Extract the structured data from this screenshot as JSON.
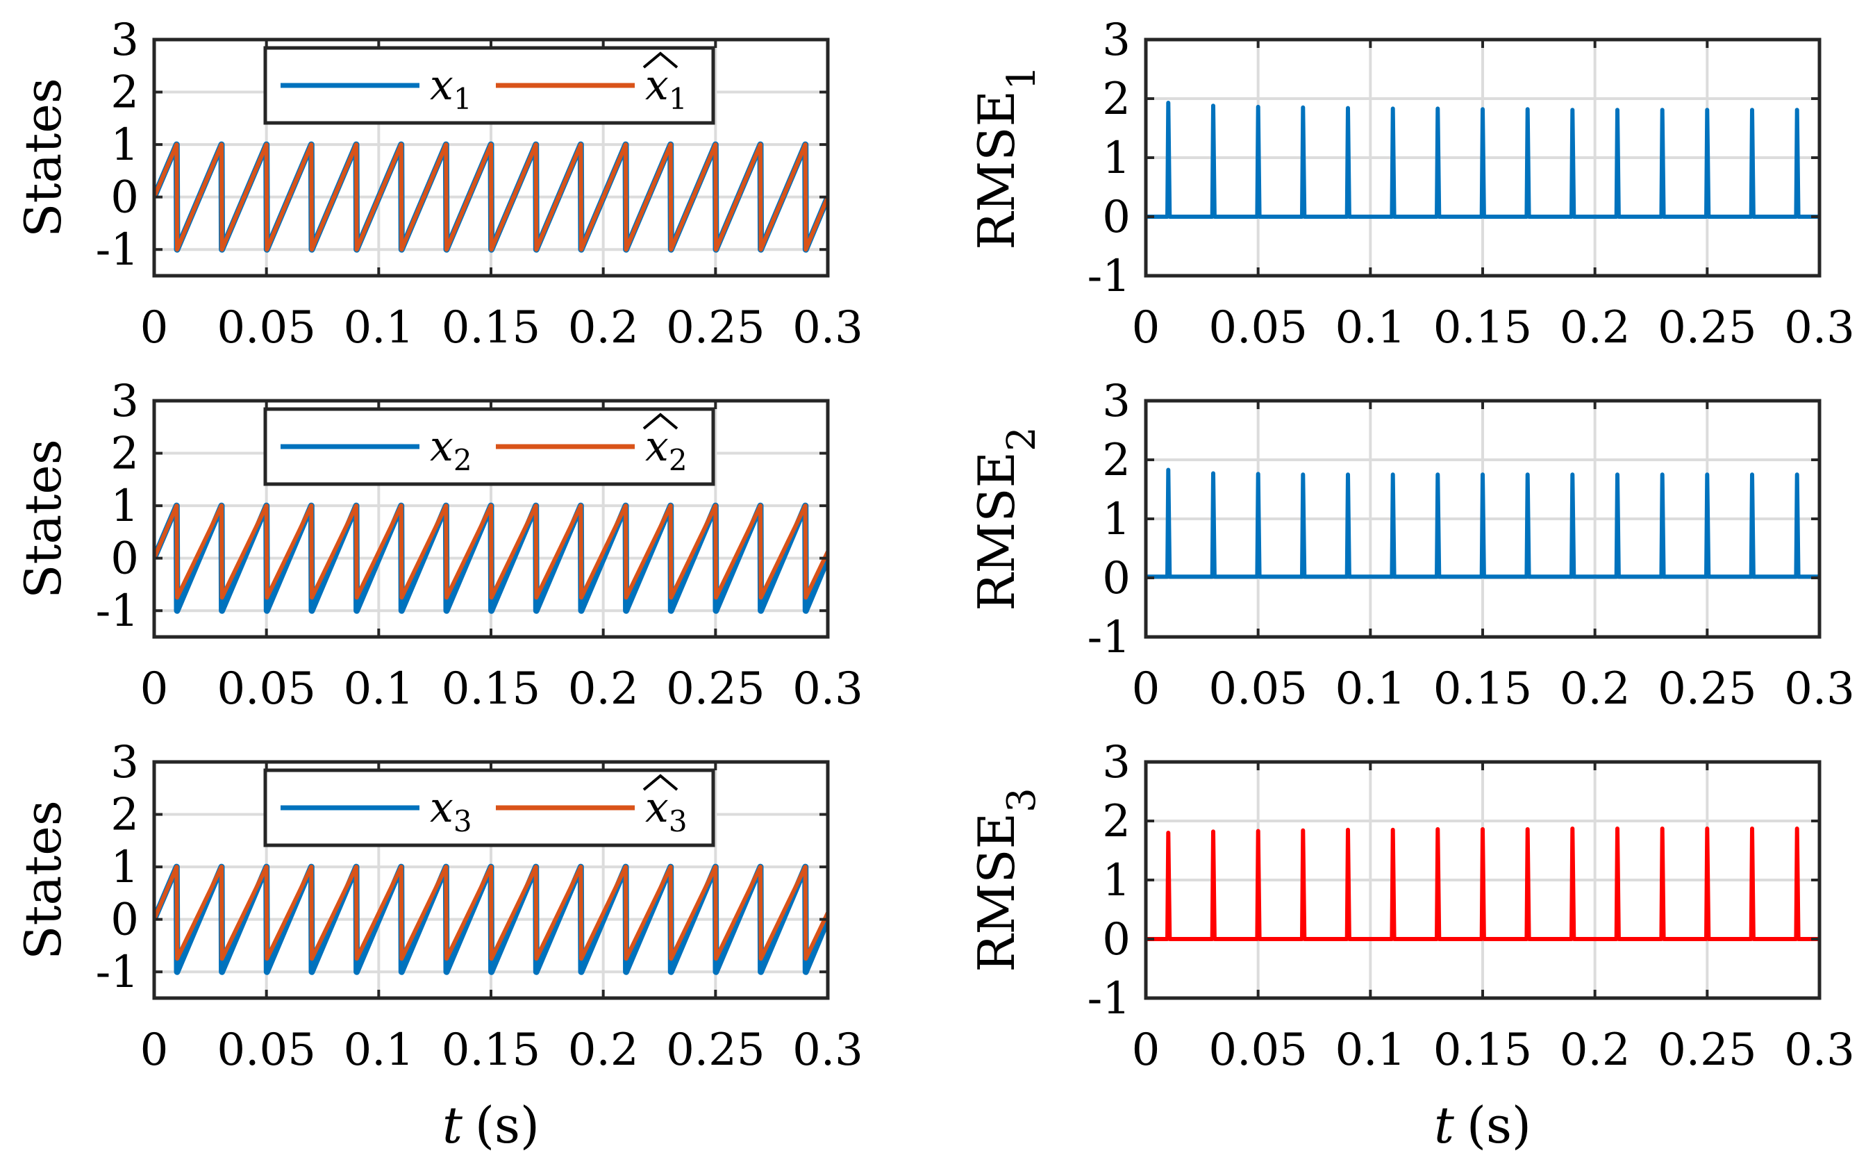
{
  "figure": {
    "xlabel_var": "t",
    "xlabel_unit": "(s)"
  },
  "chart_data": [
    {
      "id": "states-1",
      "type": "line",
      "ylabel": "States",
      "xlim": [
        0,
        0.3
      ],
      "ylim": [
        -1.5,
        3
      ],
      "xticks": [
        "0",
        "0.05",
        "0.1",
        "0.15",
        "0.2",
        "0.25",
        "0.3"
      ],
      "yticks": [
        "-1",
        "0",
        "1",
        "2",
        "3"
      ],
      "grid": true,
      "legend_position": "top-center",
      "period": 0.02,
      "first_peak": 0.01,
      "series": [
        {
          "name": "x_1",
          "legend_base": "x",
          "legend_sub": "1",
          "hat": false,
          "color": "#0072BD",
          "trough": -1.0
        },
        {
          "name": "x̂_1",
          "legend_base": "x",
          "legend_sub": "1",
          "hat": true,
          "color": "#D95319",
          "trough": -1.0
        }
      ]
    },
    {
      "id": "states-2",
      "type": "line",
      "ylabel": "States",
      "xlim": [
        0,
        0.3
      ],
      "ylim": [
        -1.5,
        3
      ],
      "xticks": [
        "0",
        "0.05",
        "0.1",
        "0.15",
        "0.2",
        "0.25",
        "0.3"
      ],
      "yticks": [
        "-1",
        "0",
        "1",
        "2",
        "3"
      ],
      "grid": true,
      "legend_position": "top-center",
      "period": 0.02,
      "first_peak": 0.01,
      "series": [
        {
          "name": "x_2",
          "legend_base": "x",
          "legend_sub": "2",
          "hat": false,
          "color": "#0072BD",
          "trough": -1.0
        },
        {
          "name": "x̂_2",
          "legend_base": "x",
          "legend_sub": "2",
          "hat": true,
          "color": "#D95319",
          "trough": -0.75
        }
      ]
    },
    {
      "id": "states-3",
      "type": "line",
      "ylabel": "States",
      "xlim": [
        0,
        0.3
      ],
      "ylim": [
        -1.5,
        3
      ],
      "xticks": [
        "0",
        "0.05",
        "0.1",
        "0.15",
        "0.2",
        "0.25",
        "0.3"
      ],
      "yticks": [
        "-1",
        "0",
        "1",
        "2",
        "3"
      ],
      "grid": true,
      "legend_position": "top-center",
      "period": 0.02,
      "first_peak": 0.01,
      "series": [
        {
          "name": "x_3",
          "legend_base": "x",
          "legend_sub": "3",
          "hat": false,
          "color": "#0072BD",
          "trough": -1.0
        },
        {
          "name": "x̂_3",
          "legend_base": "x",
          "legend_sub": "3",
          "hat": true,
          "color": "#D95319",
          "trough": -0.75
        }
      ]
    },
    {
      "id": "rmse-1",
      "type": "line",
      "ylabel_base": "RMSE",
      "ylabel_sub": "1",
      "xlim": [
        0,
        0.3
      ],
      "ylim": [
        -1,
        3
      ],
      "xticks": [
        "0",
        "0.05",
        "0.1",
        "0.15",
        "0.2",
        "0.25",
        "0.3"
      ],
      "yticks": [
        "-1",
        "0",
        "1",
        "2",
        "3"
      ],
      "grid": true,
      "color": "#0072BD",
      "baseline": 0,
      "spike_times": [
        0.01,
        0.03,
        0.05,
        0.07,
        0.09,
        0.11,
        0.13,
        0.15,
        0.17,
        0.19,
        0.21,
        0.23,
        0.25,
        0.27,
        0.29
      ],
      "spike_values": [
        1.93,
        1.88,
        1.86,
        1.85,
        1.84,
        1.83,
        1.83,
        1.82,
        1.82,
        1.81,
        1.81,
        1.81,
        1.81,
        1.81,
        1.81
      ]
    },
    {
      "id": "rmse-2",
      "type": "line",
      "ylabel_base": "RMSE",
      "ylabel_sub": "2",
      "xlim": [
        0,
        0.3
      ],
      "ylim": [
        -1,
        3
      ],
      "xticks": [
        "0",
        "0.05",
        "0.1",
        "0.15",
        "0.2",
        "0.25",
        "0.3"
      ],
      "yticks": [
        "-1",
        "0",
        "1",
        "2",
        "3"
      ],
      "grid": true,
      "color": "#0072BD",
      "baseline": 0.02,
      "spike_times": [
        0.01,
        0.03,
        0.05,
        0.07,
        0.09,
        0.11,
        0.13,
        0.15,
        0.17,
        0.19,
        0.21,
        0.23,
        0.25,
        0.27,
        0.29
      ],
      "spike_values": [
        1.83,
        1.77,
        1.76,
        1.75,
        1.75,
        1.75,
        1.75,
        1.75,
        1.75,
        1.75,
        1.75,
        1.75,
        1.75,
        1.75,
        1.75
      ]
    },
    {
      "id": "rmse-3",
      "type": "line",
      "ylabel_base": "RMSE",
      "ylabel_sub": "3",
      "xlim": [
        0,
        0.3
      ],
      "ylim": [
        -1,
        3
      ],
      "xticks": [
        "0",
        "0.05",
        "0.1",
        "0.15",
        "0.2",
        "0.25",
        "0.3"
      ],
      "yticks": [
        "-1",
        "0",
        "1",
        "2",
        "3"
      ],
      "grid": true,
      "color": "#FF0000",
      "baseline": 0,
      "spike_times": [
        0.01,
        0.03,
        0.05,
        0.07,
        0.09,
        0.11,
        0.13,
        0.15,
        0.17,
        0.19,
        0.21,
        0.23,
        0.25,
        0.27,
        0.29
      ],
      "spike_values": [
        1.8,
        1.82,
        1.83,
        1.84,
        1.85,
        1.85,
        1.86,
        1.86,
        1.86,
        1.87,
        1.87,
        1.87,
        1.87,
        1.87,
        1.87
      ]
    }
  ]
}
